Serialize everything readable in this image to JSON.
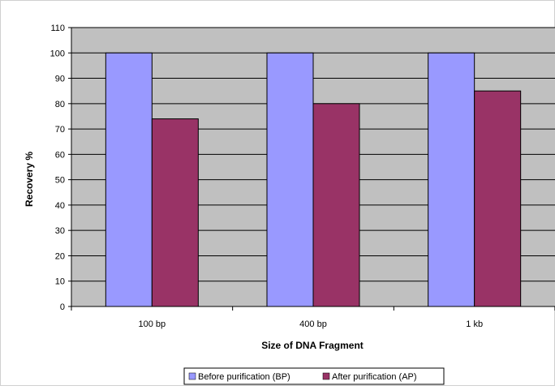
{
  "chart_data": {
    "type": "bar",
    "title": "",
    "xlabel": "Size of DNA Fragment",
    "ylabel": "Recovery %",
    "categories": [
      "100 bp",
      "400 bp",
      "1 kb"
    ],
    "series": [
      {
        "name": "Before purification (BP)",
        "values": [
          100,
          100,
          100
        ],
        "color": "#9999ff"
      },
      {
        "name": "After purification (AP)",
        "values": [
          74,
          80,
          85
        ],
        "color": "#993366"
      }
    ],
    "ylim": [
      0,
      110
    ],
    "yticks": [
      0,
      10,
      20,
      30,
      40,
      50,
      60,
      70,
      80,
      90,
      100,
      110
    ],
    "grid": true,
    "plot_background": "#c0c0c0",
    "legend_position": "bottom"
  }
}
